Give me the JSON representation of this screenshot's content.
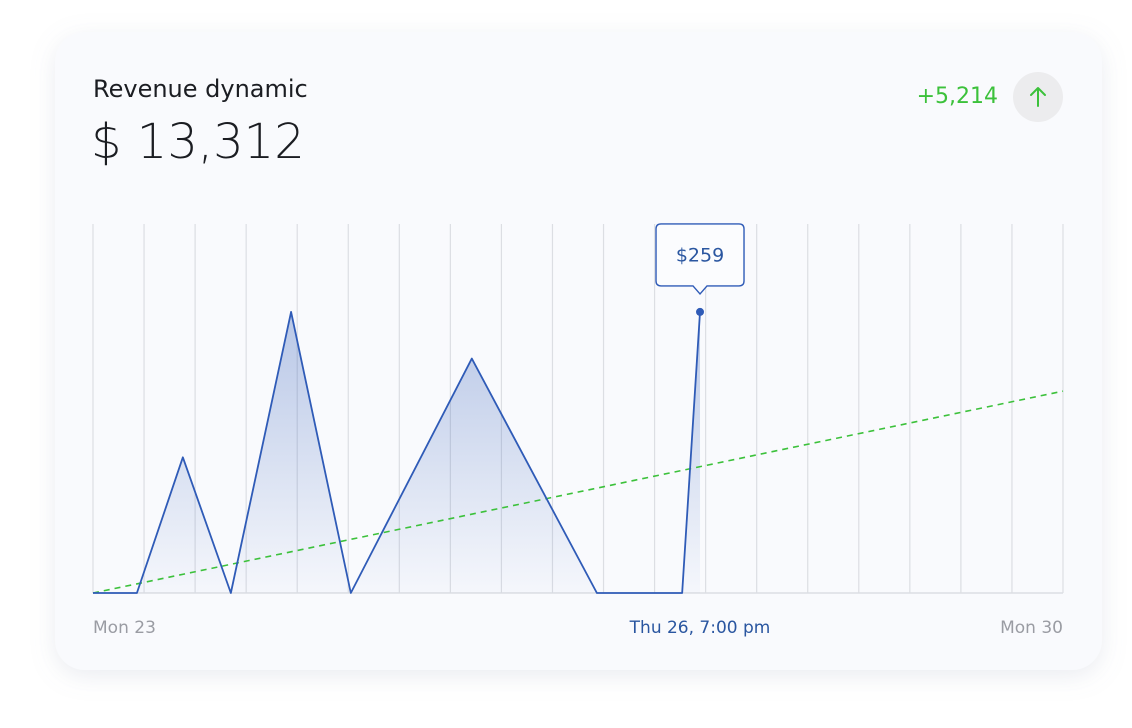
{
  "card": {
    "title": "Revenue dynamic",
    "total": "$ 13,312",
    "change": "+5,214"
  },
  "chart_data": {
    "type": "area",
    "x": [
      0,
      0.86,
      1.76,
      2.7,
      3.88,
      5.05,
      7.42,
      9.87,
      11.54,
      11.89
    ],
    "values": [
      0,
      0,
      125,
      0,
      259,
      0,
      216,
      0,
      0,
      259
    ],
    "value_labels": [
      null,
      null,
      null,
      null,
      null,
      null,
      null,
      null,
      null,
      "$259"
    ],
    "color": "#2f5bb7",
    "trend": {
      "x": [
        0,
        19
      ],
      "values": [
        0,
        186
      ],
      "color": "#3cc13b"
    },
    "xlim": [
      0,
      19
    ],
    "ylim": [
      0,
      340
    ],
    "xticks": [
      {
        "value": 0,
        "label": "Mon 23"
      },
      {
        "value": 11.89,
        "label": "Thu 26, 7:00 pm"
      },
      {
        "value": 19,
        "label": "Mon 30"
      }
    ],
    "grid": true
  }
}
